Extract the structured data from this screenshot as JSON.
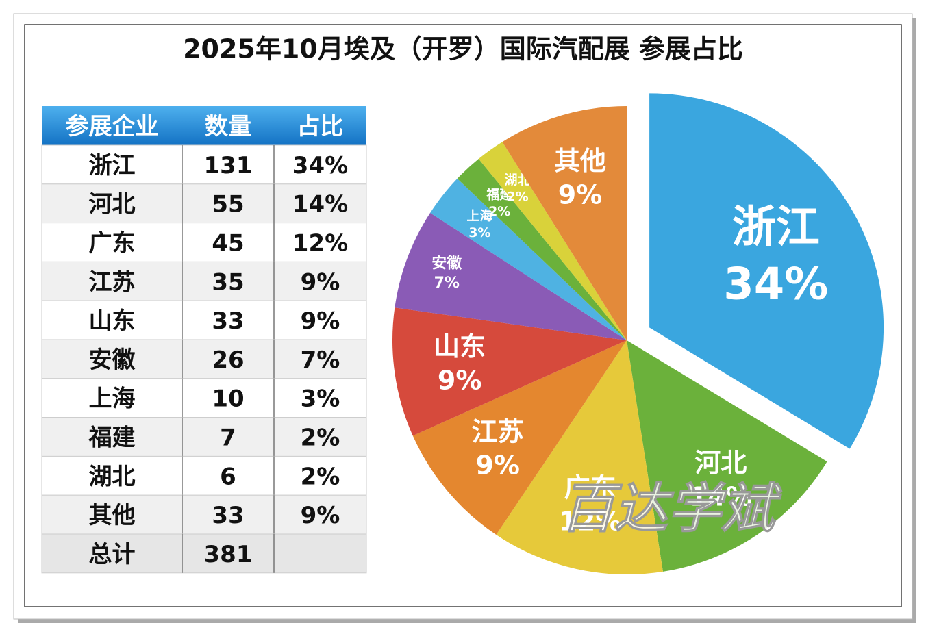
{
  "chart_data": {
    "type": "pie",
    "title": "2025年10月埃及（开罗）国际汽配展 参展占比",
    "categories": [
      "浙江",
      "河北",
      "广东",
      "江苏",
      "山东",
      "安徽",
      "上海",
      "福建",
      "湖北",
      "其他"
    ],
    "values": [
      34,
      14,
      12,
      9,
      9,
      7,
      3,
      2,
      2,
      9
    ],
    "value_labels": [
      "34%",
      "14%",
      "12%",
      "9%",
      "9%",
      "7%",
      "3%",
      "2%",
      "2%",
      "9%"
    ],
    "colors": [
      "#3aa6df",
      "#6bb13b",
      "#e6c93a",
      "#e4872f",
      "#d64a3c",
      "#8a5bb6",
      "#4fb2e2",
      "#6bb13b",
      "#d9d23a",
      "#e38a3a"
    ],
    "exploded": "浙江"
  },
  "table": {
    "headers": [
      "参展企业",
      "数量",
      "占比"
    ],
    "counts": [
      131,
      55,
      45,
      35,
      33,
      26,
      10,
      7,
      6,
      33
    ],
    "total_label": "总计",
    "total": 381
  },
  "watermark": "百达学斌"
}
